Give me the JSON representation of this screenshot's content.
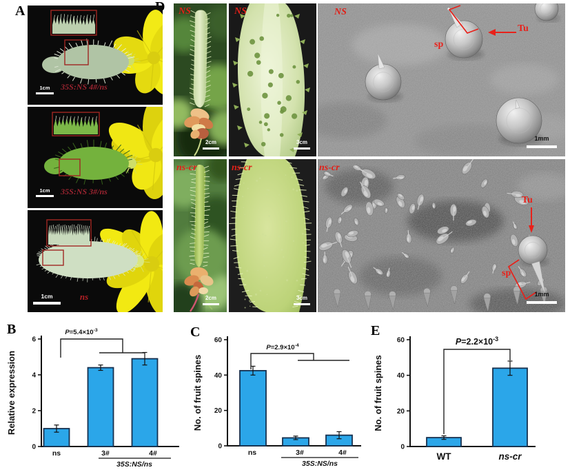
{
  "figure": {
    "panel_letters": {
      "A": "A",
      "B": "B",
      "C": "C",
      "D": "D",
      "E": "E"
    }
  },
  "colors": {
    "bar_fill": "#2BA6E9",
    "bar_edge": "#16304F",
    "annotation_red": "#E8211A",
    "panel_a_label_red": "#9B2430",
    "axis_black": "#111111"
  },
  "panel_a": {
    "letter": "A",
    "images": [
      {
        "label": "35S:NS 4#/ns",
        "scale_label": "1cm"
      },
      {
        "label": "35S:NS 3#/ns",
        "scale_label": "1cm"
      },
      {
        "label": "ns",
        "scale_label": "1cm"
      }
    ]
  },
  "panel_d": {
    "letter": "D",
    "rows": [
      {
        "genotype": "NS",
        "cells": [
          {
            "label": "NS",
            "scale_label": "2cm"
          },
          {
            "label": "NS",
            "scale_label": "3cm"
          },
          {
            "label": "NS",
            "scale_label": "1mm",
            "annotations": {
              "tubercle": "Tu",
              "spine": "sp"
            }
          }
        ]
      },
      {
        "genotype": "ns-cr",
        "cells": [
          {
            "label": "ns-cr",
            "scale_label": "2cm"
          },
          {
            "label": "ns-cr",
            "scale_label": "3cm"
          },
          {
            "label": "ns-cr",
            "scale_label": "1mm",
            "annotations": {
              "tubercle": "Tu",
              "spine": "sp"
            }
          }
        ]
      }
    ]
  },
  "chart_data": [
    {
      "panel": "B",
      "type": "bar",
      "categories": [
        "ns",
        "3#",
        "4#"
      ],
      "values": [
        1.0,
        4.4,
        4.9
      ],
      "errors": [
        0.2,
        0.15,
        0.35
      ],
      "ylabel": "Relative expression",
      "xlabel": "",
      "ylim": [
        0,
        6
      ],
      "yticks": [
        0,
        2,
        4,
        6
      ],
      "p_text": "P=5.4×10⁻³",
      "p_base": "P=5.4×10",
      "p_exponent": "-3",
      "group_label": "35S:NS/ns",
      "group_categories": [
        "3#",
        "4#"
      ],
      "bar_color": "#2BA6E9",
      "bar_edge": "#16304F",
      "grid": false,
      "legend": null
    },
    {
      "panel": "C",
      "type": "bar",
      "categories": [
        "ns",
        "3#",
        "4#"
      ],
      "values": [
        42.5,
        4.5,
        6
      ],
      "errors": [
        2.5,
        1,
        2
      ],
      "ylabel": "No. of fruit spines",
      "xlabel": "",
      "ylim": [
        0,
        60
      ],
      "yticks": [
        0,
        20,
        40,
        60
      ],
      "p_text": "P=2.9×10⁻⁴",
      "p_base": "P=2.9×10",
      "p_exponent": "-4",
      "group_label": "35S:NS/ns",
      "group_categories": [
        "3#",
        "4#"
      ],
      "bar_color": "#2BA6E9",
      "bar_edge": "#16304F",
      "grid": false,
      "legend": null
    },
    {
      "panel": "E",
      "type": "bar",
      "categories": [
        "WT",
        "ns-cr"
      ],
      "values": [
        5,
        44
      ],
      "errors": [
        1,
        4
      ],
      "ylabel": "No. of fruit spines",
      "xlabel": "",
      "ylim": [
        0,
        60
      ],
      "yticks": [
        0,
        20,
        40,
        60
      ],
      "p_text": "P=2.2×10⁻³",
      "p_base": "P=2.2×10",
      "p_exponent": "-3",
      "group_label": null,
      "group_categories": null,
      "bar_color": "#2BA6E9",
      "bar_edge": "#16304F",
      "grid": false,
      "legend": null
    }
  ]
}
